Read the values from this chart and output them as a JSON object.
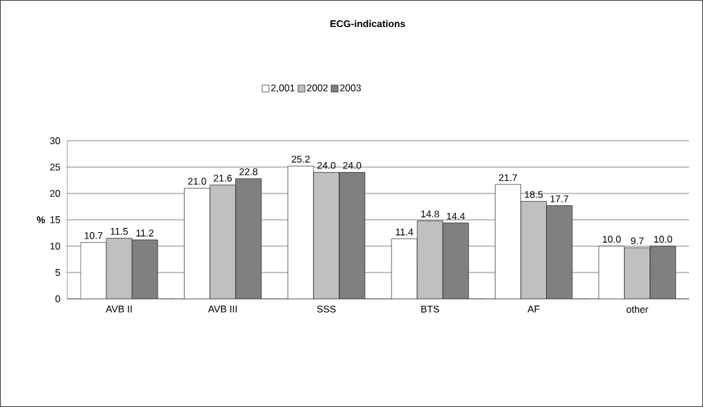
{
  "chart_data": {
    "type": "bar",
    "title": "ECG-indications",
    "ylabel": "%",
    "categories": [
      "AVB II",
      "AVB III",
      "SSS",
      "BTS",
      "AF",
      "other"
    ],
    "series": [
      {
        "name": "2,001",
        "color": "#ffffff",
        "values": [
          10.7,
          21.0,
          25.2,
          11.4,
          21.7,
          10.0
        ],
        "value_labels": [
          "10.7",
          "21.0",
          "25.2",
          "11.4",
          "21.7",
          "10.0"
        ]
      },
      {
        "name": "2002",
        "color": "#c0c0c0",
        "values": [
          11.5,
          21.6,
          24.0,
          14.8,
          18.5,
          9.7
        ],
        "value_labels": [
          "11.5",
          "21.6",
          "24.0",
          "14.8",
          "18.5",
          "9.7"
        ]
      },
      {
        "name": "2003",
        "color": "#808080",
        "values": [
          11.2,
          22.8,
          24.0,
          14.4,
          17.7,
          10.0
        ],
        "value_labels": [
          "11.2",
          "22.8",
          "24.0",
          "14.4",
          "17.7",
          "10.0"
        ]
      }
    ],
    "ylim": [
      0,
      30
    ],
    "yticks": [
      0,
      5,
      10,
      15,
      20,
      25,
      30
    ],
    "grid": "y",
    "legend": "top"
  }
}
